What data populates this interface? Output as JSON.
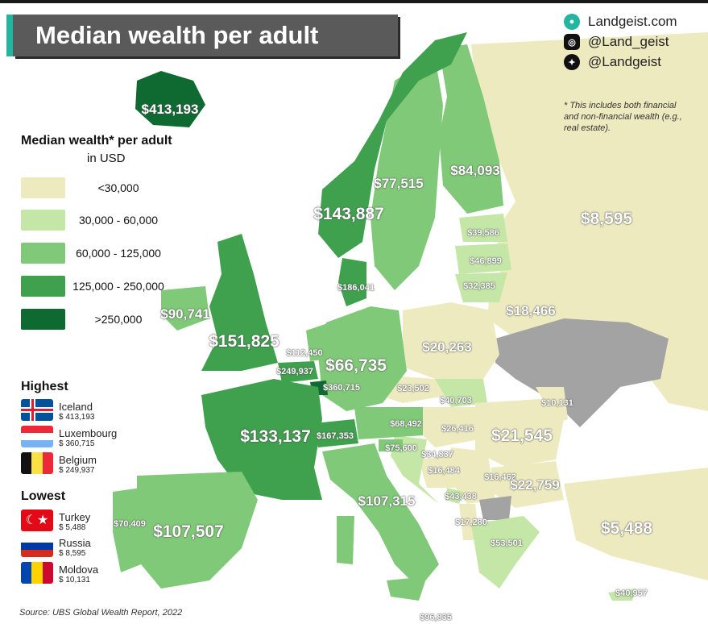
{
  "title": "Median wealth per adult",
  "branding": {
    "site": "Landgeist.com",
    "instagram": "@Land_geist",
    "twitter": "@Landgeist",
    "site_icon": "globe-icon",
    "instagram_icon": "instagram-icon",
    "twitter_icon": "twitter-icon"
  },
  "note": "* This includes both financial and non-financial wealth (e.g., real estate).",
  "legend": {
    "title": "Median wealth* per adult",
    "subtitle": "in USD",
    "bins": [
      {
        "label": "<30,000",
        "color": "#eeeac0"
      },
      {
        "label": "30,000 - 60,000",
        "color": "#c4e7a8"
      },
      {
        "label": "60,000 - 125,000",
        "color": "#80c978"
      },
      {
        "label": "125,000 - 250,000",
        "color": "#3fa14e"
      },
      {
        "label": ">250,000",
        "color": "#0f6a32"
      }
    ],
    "no_data_color": "#a3a3a3"
  },
  "highest": {
    "heading": "Highest",
    "items": [
      {
        "country": "Iceland",
        "value": "$ 413,193"
      },
      {
        "country": "Luxembourg",
        "value": "$ 360,715"
      },
      {
        "country": "Belgium",
        "value": "$ 249,937"
      }
    ]
  },
  "lowest": {
    "heading": "Lowest",
    "items": [
      {
        "country": "Turkey",
        "value": "$ 5,488"
      },
      {
        "country": "Russia",
        "value": "$ 8,595"
      },
      {
        "country": "Moldova",
        "value": "$ 10,131"
      }
    ]
  },
  "source": "Source: UBS Global Wealth Report, 2022",
  "map_labels": {
    "iceland": "$413,193",
    "norway": "$143,887",
    "sweden": "$77,515",
    "finland": "$84,093",
    "russia": "$8,595",
    "estonia": "$39,586",
    "latvia": "$46,899",
    "lithuania": "$32,385",
    "belarus": "$18,466",
    "denmark": "$186,041",
    "ireland": "$90,741",
    "uk": "$151,825",
    "netherlands": "$112,450",
    "belgium": "$249,937",
    "luxembourg": "$360,715",
    "germany": "$66,735",
    "poland": "$20,263",
    "czechia": "$23,502",
    "slovakia": "$40,703",
    "moldova": "$10,131",
    "austria": "$68,492",
    "hungary": "$26,416",
    "romania": "$21,545",
    "france": "$133,137",
    "switzerland": "$167,353",
    "slovenia": "$75,600",
    "croatia": "$34,837",
    "bosnia": "$16,484",
    "serbia": "$16,462",
    "bulgaria": "$22,759",
    "montenegro": "$43,438",
    "albania": "$17,280",
    "italy": "$107,315",
    "greece": "$53,501",
    "turkey": "$5,488",
    "portugal": "$70,409",
    "spain": "$107,507",
    "cyprus": "$40,957",
    "malta": "$96,835"
  }
}
